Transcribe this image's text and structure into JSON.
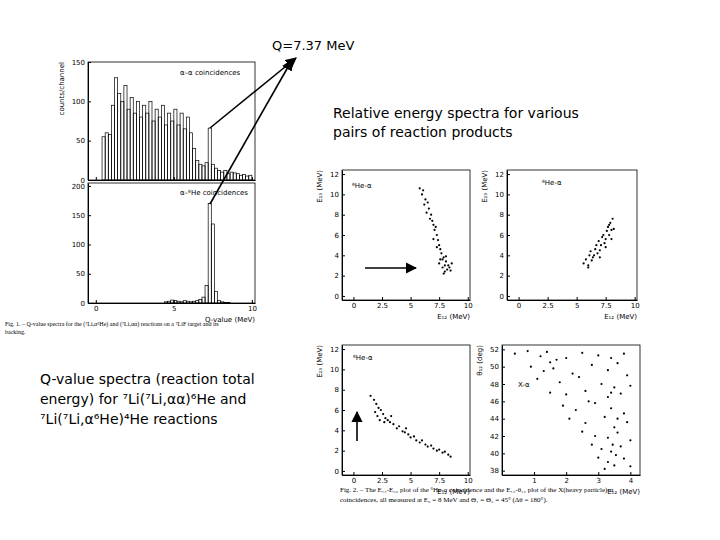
{
  "slide": {
    "q_label": "Q=7.37 MeV",
    "relative_label": [
      "Relative energy spectra for various",
      "pairs of reaction products"
    ],
    "q_spectra_note": [
      "Q-value spectra (reaction total",
      "energy) for ⁷Li(⁷Li,αα)⁶He and",
      "⁷Li(⁷Li,α⁶He)⁴He reactions"
    ],
    "fig1_caption": [
      "Fig. 1. – Q-value spectra for the (⁷Li,α⁶He) and (⁷Li,αα) reactions on a ⁷LiF target and its",
      "backing."
    ],
    "fig2_caption": [
      "Fig. 2. – The E₁₂-E₃₂ plot of the ⁶He-α coincidence and the E₁₂-θ₁₂ plot of the X(heavy particle)-α",
      "coincidences, all measured at E₀ = 8 MeV and Θ₁ = Θ₂ = 45° (Δθ = 180°)."
    ]
  },
  "chart_data": [
    {
      "type": "histogram",
      "title": "α–α coincidences",
      "ylabel": "counts/channel",
      "bins": [
        0,
        0.2,
        0.4,
        0.6,
        0.8,
        1,
        1.2,
        1.4,
        1.6,
        1.8,
        2,
        2.2,
        2.4,
        2.6,
        2.8,
        3,
        3.2,
        3.4,
        3.6,
        3.8,
        4,
        4.2,
        4.4,
        4.6,
        4.8,
        5,
        5.2,
        5.4,
        5.6,
        5.8,
        6,
        6.2,
        6.4,
        6.6,
        6.8,
        7,
        7.2,
        7.4,
        7.6,
        7.8,
        8,
        8.2,
        8.4,
        8.6,
        8.8,
        9,
        9.2,
        9.4,
        9.6,
        9.8,
        10
      ],
      "values": [
        0,
        0,
        55,
        60,
        58,
        95,
        130,
        110,
        100,
        120,
        90,
        105,
        85,
        100,
        80,
        95,
        85,
        100,
        75,
        90,
        80,
        95,
        70,
        85,
        75,
        90,
        70,
        85,
        65,
        80,
        60,
        40,
        25,
        20,
        18,
        22,
        66,
        20,
        15,
        12,
        10,
        12,
        8,
        10,
        9,
        8,
        6,
        7,
        5,
        6
      ],
      "xlim": [
        -0.5,
        10.2
      ],
      "ylim": [
        0,
        150
      ],
      "xticks": [
        0,
        5,
        10
      ],
      "yticks": [
        0,
        50,
        100,
        150
      ],
      "tick_labels": "y",
      "color": "#000000"
    },
    {
      "type": "histogram",
      "title": "α–⁶He coincidences",
      "xlabel": "Q-value (MeV)",
      "bins": [
        0,
        0.2,
        0.4,
        0.6,
        0.8,
        1,
        1.2,
        1.4,
        1.6,
        1.8,
        2,
        2.2,
        2.4,
        2.6,
        2.8,
        3,
        3.2,
        3.4,
        3.6,
        3.8,
        4,
        4.2,
        4.4,
        4.6,
        4.8,
        5,
        5.2,
        5.4,
        5.6,
        5.8,
        6,
        6.2,
        6.4,
        6.6,
        6.8,
        7,
        7.2,
        7.4,
        7.6,
        7.8,
        8,
        8.2,
        8.4,
        8.6,
        8.8,
        9,
        9.2,
        9.4,
        9.6,
        9.8,
        10
      ],
      "values": [
        0,
        0,
        0,
        0,
        0,
        0,
        0,
        0,
        0,
        0,
        0,
        0,
        0,
        0,
        0,
        0,
        0,
        0,
        0,
        0,
        0,
        0,
        2,
        3,
        5,
        4,
        3,
        2,
        4,
        3,
        2,
        3,
        4,
        6,
        10,
        30,
        170,
        135,
        20,
        4,
        2,
        1,
        1,
        0,
        0,
        0,
        0,
        0,
        0,
        0
      ],
      "xlim": [
        -0.5,
        10.2
      ],
      "ylim": [
        0,
        205
      ],
      "xticks": [
        0,
        5,
        10
      ],
      "yticks": [
        0,
        50,
        100,
        150,
        200
      ],
      "color": "#000000"
    },
    {
      "type": "scatter",
      "title": "⁶He-α",
      "xlabel": "E₁₂ (MeV)",
      "ylabel": "E₁₃ (MeV)",
      "x": [
        5.8,
        6.0,
        6.1,
        6.3,
        6.2,
        6.5,
        6.6,
        6.4,
        6.8,
        6.9,
        7.0,
        6.7,
        7.1,
        7.2,
        7.3,
        7.0,
        7.4,
        7.5,
        7.6,
        7.3,
        7.7,
        7.8,
        7.5,
        7.9,
        8.0,
        8.1,
        7.8,
        8.2,
        8.3,
        8.0,
        8.4,
        8.5,
        7.6,
        8.1,
        8.6,
        7.9
      ],
      "y": [
        10.6,
        10.0,
        10.4,
        9.5,
        9.0,
        9.2,
        8.6,
        8.2,
        8.0,
        7.4,
        7.0,
        7.6,
        6.5,
        6.8,
        6.0,
        5.6,
        5.5,
        5.0,
        4.6,
        4.8,
        4.2,
        3.6,
        3.2,
        3.8,
        3.0,
        3.4,
        2.8,
        2.6,
        3.0,
        2.4,
        2.8,
        2.5,
        3.6,
        3.9,
        3.2,
        2.2
      ],
      "xlim": [
        -1,
        10.2
      ],
      "ylim": [
        -0.4,
        12.4
      ],
      "xticks": [
        0,
        2.5,
        5,
        7.5,
        10
      ],
      "yticks": [
        0,
        2,
        4,
        6,
        8,
        10,
        12
      ],
      "marker": "dot",
      "color": "#000000"
    },
    {
      "type": "scatter",
      "title": "⁶He-α",
      "xlabel": "E₁₂ (MeV)",
      "ylabel": "E₂₃ (MeV)",
      "x": [
        5.6,
        5.8,
        6.0,
        6.1,
        6.3,
        6.2,
        6.5,
        6.6,
        6.8,
        6.7,
        7.0,
        6.9,
        7.1,
        7.2,
        7.4,
        7.3,
        7.5,
        7.6,
        7.8,
        7.7,
        8.0,
        7.9,
        8.1,
        8.2,
        6.4,
        7.0,
        7.5,
        8.0,
        6.0,
        7.8
      ],
      "y": [
        3.2,
        3.6,
        3.0,
        4.0,
        3.5,
        4.4,
        4.0,
        4.6,
        4.2,
        5.0,
        4.5,
        5.4,
        5.0,
        5.8,
        5.2,
        6.0,
        5.6,
        6.4,
        6.0,
        6.8,
        6.5,
        7.2,
        7.6,
        6.6,
        3.8,
        3.8,
        4.8,
        5.6,
        2.8,
        7.0
      ],
      "xlim": [
        -1,
        10.2
      ],
      "ylim": [
        -0.4,
        12.4
      ],
      "xticks": [
        0,
        2.5,
        5,
        7.5,
        10
      ],
      "yticks": [
        0,
        2,
        4,
        6,
        8,
        10,
        12
      ],
      "marker": "dot",
      "color": "#000000"
    },
    {
      "type": "scatter",
      "title": "⁶He-α",
      "xlabel": "E₁₂ (MeV)",
      "ylabel": "E₂₃ (MeV)",
      "x": [
        1.5,
        1.8,
        2.0,
        2.2,
        1.9,
        2.4,
        2.1,
        2.6,
        2.8,
        3.0,
        3.2,
        3.5,
        3.8,
        4.0,
        4.3,
        4.5,
        4.8,
        5.0,
        5.3,
        5.5,
        5.8,
        6.0,
        6.3,
        6.5,
        6.8,
        7.0,
        7.3,
        7.5,
        7.8,
        8.0,
        8.3,
        8.5,
        2.3,
        2.7,
        3.3,
        4.6
      ],
      "y": [
        7.4,
        7.0,
        6.6,
        6.2,
        5.8,
        6.0,
        5.4,
        5.6,
        5.2,
        5.0,
        4.8,
        4.6,
        4.2,
        4.4,
        3.9,
        3.8,
        3.6,
        3.3,
        3.4,
        3.0,
        2.8,
        3.0,
        2.6,
        2.4,
        2.5,
        2.2,
        2.0,
        2.1,
        1.8,
        1.9,
        1.6,
        1.4,
        5.0,
        4.8,
        5.4,
        4.2
      ],
      "xlim": [
        -1,
        10.2
      ],
      "ylim": [
        -0.4,
        12.4
      ],
      "xticks": [
        0,
        2.5,
        5,
        7.5,
        10
      ],
      "yticks": [
        0,
        2,
        4,
        6,
        8,
        10,
        12
      ],
      "marker": "dot",
      "color": "#000000"
    },
    {
      "type": "scatter",
      "title": "X-α",
      "xlabel": "E₁₂ (MeV)",
      "ylabel": "θ₁₂ (deg)",
      "x": [
        0.4,
        0.8,
        1.2,
        1.5,
        1.4,
        2.0,
        2.5,
        3.0,
        3.4,
        3.8,
        0.9,
        1.3,
        1.6,
        2.2,
        2.8,
        3.3,
        3.6,
        3.9,
        1.1,
        1.8,
        2.4,
        3.1,
        3.5,
        1.5,
        2.0,
        2.6,
        3.3,
        3.7,
        4.0,
        1.9,
        2.3,
        2.9,
        3.4,
        3.8,
        2.1,
        2.6,
        3.2,
        3.5,
        3.9,
        2.5,
        2.9,
        3.3,
        3.6,
        4.0,
        2.8,
        3.1,
        3.4,
        3.7,
        3.0,
        3.3,
        3.5,
        3.8,
        3.2,
        4.0,
        1.7,
        2.7,
        3.4,
        3.6,
        3.45,
        3.55
      ],
      "y": [
        51.5,
        51.8,
        51.2,
        50.5,
        51.7,
        51.0,
        51.6,
        51.3,
        51.0,
        51.5,
        50.0,
        49.5,
        49.8,
        49.2,
        50.2,
        49.6,
        50.4,
        49.0,
        48.6,
        48.2,
        48.8,
        48.0,
        47.6,
        47.0,
        46.8,
        47.2,
        46.5,
        46.9,
        47.8,
        45.5,
        45.0,
        45.8,
        45.2,
        44.6,
        44.0,
        43.5,
        44.2,
        43.0,
        43.6,
        42.5,
        42.0,
        41.8,
        42.4,
        41.5,
        41.0,
        40.5,
        40.2,
        40.8,
        39.5,
        39.0,
        38.6,
        39.4,
        38.2,
        38.5,
        50.8,
        46.0,
        47.0,
        44.0,
        41.0,
        39.8
      ],
      "xlim": [
        0,
        4.3
      ],
      "ylim": [
        37.5,
        52.5
      ],
      "xticks": [
        1,
        2,
        3,
        4
      ],
      "yticks": [
        38,
        40,
        42,
        44,
        46,
        48,
        50,
        52
      ],
      "marker": "dot",
      "color": "#000000"
    }
  ]
}
